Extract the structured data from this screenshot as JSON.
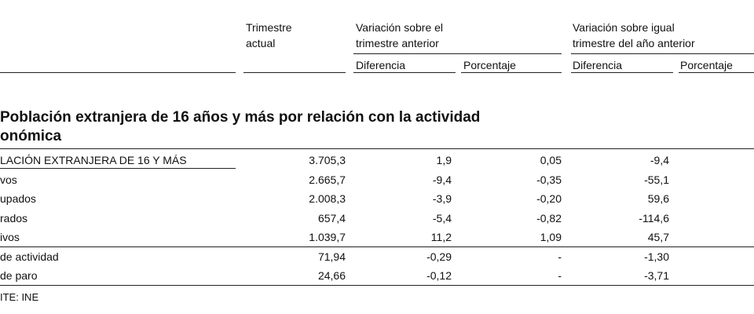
{
  "header": {
    "col1": [
      "Trimestre",
      "actual"
    ],
    "group1": [
      "Variación sobre el",
      "trimestre anterior"
    ],
    "group2": [
      "Variación sobre igual",
      "trimestre del año anterior"
    ],
    "sub": [
      "Diferencia",
      "Porcentaje",
      "Diferencia",
      "Porcentaje"
    ]
  },
  "title": [
    "Población extranjera de 16 años y más por relación con la actividad",
    "onómica"
  ],
  "table": {
    "rows": [
      [
        "LACIÓN EXTRANJERA DE 16 Y MÁS",
        "3.705,3",
        "1,9",
        "0,05",
        "-9,4"
      ],
      [
        "vos",
        "2.665,7",
        "-9,4",
        "-0,35",
        "-55,1"
      ],
      [
        "upados",
        "2.008,3",
        "-3,9",
        "-0,20",
        "59,6"
      ],
      [
        "rados",
        "657,4",
        "-5,4",
        "-0,82",
        "-114,6"
      ],
      [
        "ivos",
        "1.039,7",
        "11,2",
        "1,09",
        "45,7"
      ],
      [
        "de actividad",
        "71,94",
        "-0,29",
        "-",
        "-1,30"
      ],
      [
        "de paro",
        "24,66",
        "-0,12",
        "-",
        "-3,71"
      ]
    ]
  },
  "source": "ITE: INE"
}
